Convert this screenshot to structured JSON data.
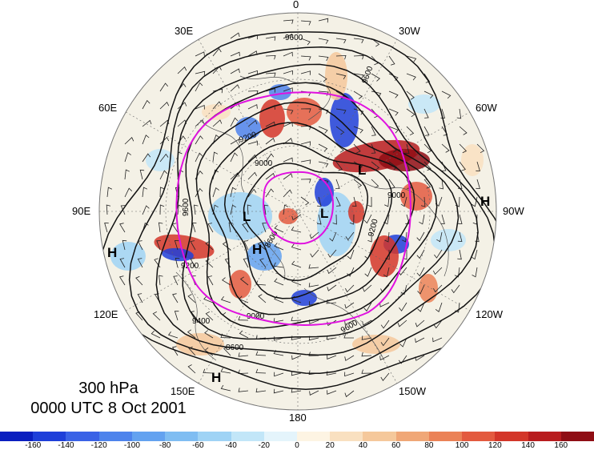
{
  "title": {
    "level": "300 hPa",
    "datetime": "0000 UTC 8 Oct 2001"
  },
  "longitude_labels": {
    "lon_0": "0",
    "lon_30w": "30W",
    "lon_60w": "60W",
    "lon_90w": "90W",
    "lon_120w": "120W",
    "lon_150w": "150W",
    "lon_180": "180",
    "lon_150e": "150E",
    "lon_120e": "120E",
    "lon_90e": "90E",
    "lon_60e": "60E",
    "lon_30e": "30E"
  },
  "pressure_centers": {
    "h_west_edge": "H",
    "h_east_edge": "H",
    "h_bottom": "H",
    "h_center": "H",
    "l_center_left": "L",
    "l_center_right": "L",
    "l_upper_right": "L"
  },
  "contour_labels": {
    "c_top": "9600",
    "c_upper_right": "9600",
    "c_upper_left": "9200",
    "c_center_top": "9000",
    "c_right": "9000",
    "c_right_lower": "9200",
    "c_left": "9600",
    "c_lower_left": "9200",
    "c_lower_mid": "9000",
    "c_lower_center": "8600",
    "c_bottom_left": "9400",
    "c_bottom": "9600",
    "c_bottom_far": "8600"
  },
  "colorbar": {
    "ticks": [
      "-160",
      "-140",
      "-120",
      "-100",
      "-80",
      "-60",
      "-40",
      "-20",
      "0",
      "20",
      "40",
      "60",
      "80",
      "100",
      "120",
      "140",
      "160"
    ],
    "colors": [
      "#0a1fbf",
      "#1e3fd9",
      "#3a62e6",
      "#4d83ec",
      "#63a2f0",
      "#7fbdf2",
      "#9fd3f5",
      "#c2e6f8",
      "#e4f4fb",
      "#fdf4e3",
      "#f9e0c0",
      "#f5c89b",
      "#f0a777",
      "#eb8257",
      "#e35a3f",
      "#d33629",
      "#b81c1e",
      "#8f0d14"
    ]
  }
}
